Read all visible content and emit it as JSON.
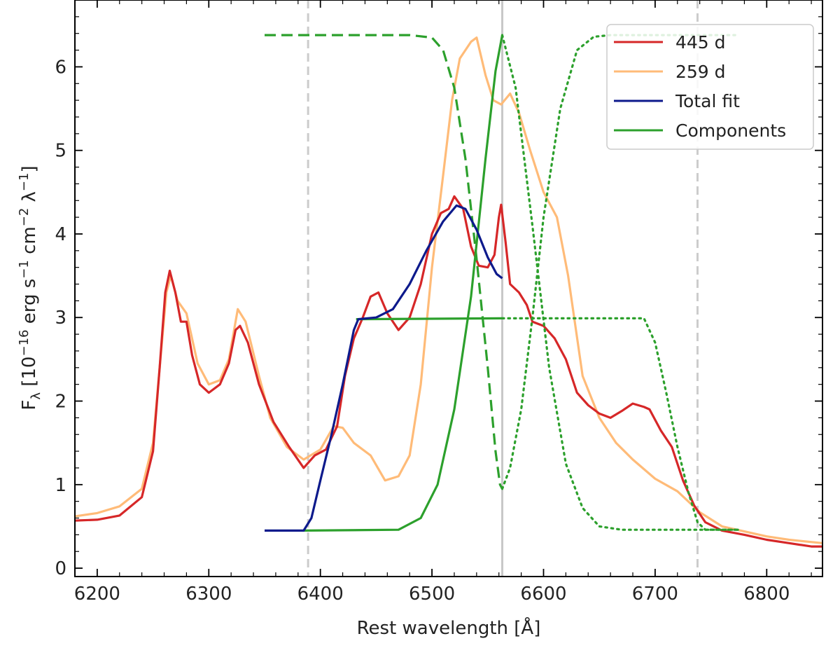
{
  "chart_data": {
    "type": "line",
    "title": "",
    "xlabel": "Rest wavelength [Å]",
    "ylabel_parts": {
      "f": "F",
      "f_sub": "λ",
      "open": " [10",
      "exp1": "−16",
      "erg": " erg s",
      "exp2": "−1",
      "cm": " cm",
      "exp3": "−2",
      "lam": " λ",
      "exp4": "−1",
      "close": "]"
    },
    "xlim": [
      6180,
      6850
    ],
    "ylim": [
      -0.1,
      6.8
    ],
    "xticks": [
      6200,
      6300,
      6400,
      6500,
      6600,
      6700,
      6800
    ],
    "yticks": [
      0,
      1,
      2,
      3,
      4,
      5,
      6
    ],
    "grid": false,
    "legend_position": "top-right",
    "legend": [
      {
        "label": "445 d",
        "color": "#d62728"
      },
      {
        "label": "259 d",
        "color": "#ffbb78"
      },
      {
        "label": "Total fit",
        "color": "#0d1a8c"
      },
      {
        "label": "Components",
        "color": "#2ca02c"
      }
    ],
    "vlines": [
      {
        "x": 6389,
        "style": "dashed",
        "color": "#cccccc"
      },
      {
        "x": 6563,
        "style": "solid",
        "color": "#c8c8c8"
      },
      {
        "x": 6738,
        "style": "dashed",
        "color": "#cccccc"
      }
    ],
    "series": [
      {
        "name": "259 d",
        "color": "#ffbb78",
        "dash": "solid",
        "points": [
          [
            6180,
            0.62
          ],
          [
            6200,
            0.66
          ],
          [
            6220,
            0.74
          ],
          [
            6240,
            0.95
          ],
          [
            6250,
            1.5
          ],
          [
            6256,
            2.4
          ],
          [
            6262,
            3.3
          ],
          [
            6266,
            3.5
          ],
          [
            6272,
            3.2
          ],
          [
            6280,
            3.05
          ],
          [
            6290,
            2.45
          ],
          [
            6300,
            2.2
          ],
          [
            6310,
            2.25
          ],
          [
            6318,
            2.5
          ],
          [
            6326,
            3.1
          ],
          [
            6333,
            2.95
          ],
          [
            6345,
            2.3
          ],
          [
            6355,
            1.8
          ],
          [
            6370,
            1.45
          ],
          [
            6385,
            1.3
          ],
          [
            6400,
            1.42
          ],
          [
            6412,
            1.7
          ],
          [
            6420,
            1.68
          ],
          [
            6430,
            1.5
          ],
          [
            6445,
            1.35
          ],
          [
            6458,
            1.05
          ],
          [
            6470,
            1.1
          ],
          [
            6480,
            1.35
          ],
          [
            6490,
            2.2
          ],
          [
            6500,
            3.6
          ],
          [
            6510,
            4.7
          ],
          [
            6518,
            5.6
          ],
          [
            6525,
            6.1
          ],
          [
            6535,
            6.3
          ],
          [
            6540,
            6.35
          ],
          [
            6548,
            5.9
          ],
          [
            6555,
            5.6
          ],
          [
            6562,
            5.55
          ],
          [
            6570,
            5.68
          ],
          [
            6578,
            5.45
          ],
          [
            6588,
            5.0
          ],
          [
            6600,
            4.5
          ],
          [
            6612,
            4.2
          ],
          [
            6622,
            3.5
          ],
          [
            6635,
            2.3
          ],
          [
            6650,
            1.8
          ],
          [
            6665,
            1.5
          ],
          [
            6680,
            1.3
          ],
          [
            6700,
            1.07
          ],
          [
            6720,
            0.92
          ],
          [
            6740,
            0.67
          ],
          [
            6760,
            0.5
          ],
          [
            6780,
            0.44
          ],
          [
            6800,
            0.38
          ],
          [
            6820,
            0.34
          ],
          [
            6850,
            0.3
          ]
        ]
      },
      {
        "name": "445 d",
        "color": "#d62728",
        "dash": "solid",
        "points": [
          [
            6180,
            0.57
          ],
          [
            6200,
            0.58
          ],
          [
            6220,
            0.63
          ],
          [
            6240,
            0.85
          ],
          [
            6250,
            1.4
          ],
          [
            6256,
            2.4
          ],
          [
            6261,
            3.3
          ],
          [
            6265,
            3.56
          ],
          [
            6270,
            3.3
          ],
          [
            6275,
            2.95
          ],
          [
            6280,
            2.95
          ],
          [
            6285,
            2.55
          ],
          [
            6292,
            2.2
          ],
          [
            6300,
            2.1
          ],
          [
            6310,
            2.2
          ],
          [
            6318,
            2.45
          ],
          [
            6324,
            2.85
          ],
          [
            6328,
            2.9
          ],
          [
            6335,
            2.7
          ],
          [
            6345,
            2.2
          ],
          [
            6358,
            1.75
          ],
          [
            6372,
            1.45
          ],
          [
            6385,
            1.2
          ],
          [
            6395,
            1.35
          ],
          [
            6405,
            1.42
          ],
          [
            6415,
            1.7
          ],
          [
            6422,
            2.3
          ],
          [
            6430,
            2.75
          ],
          [
            6438,
            3.0
          ],
          [
            6445,
            3.25
          ],
          [
            6452,
            3.3
          ],
          [
            6460,
            3.05
          ],
          [
            6470,
            2.85
          ],
          [
            6480,
            3.0
          ],
          [
            6490,
            3.4
          ],
          [
            6500,
            4.0
          ],
          [
            6508,
            4.25
          ],
          [
            6515,
            4.3
          ],
          [
            6520,
            4.45
          ],
          [
            6528,
            4.3
          ],
          [
            6535,
            3.85
          ],
          [
            6542,
            3.62
          ],
          [
            6550,
            3.6
          ],
          [
            6556,
            3.75
          ],
          [
            6560,
            4.2
          ],
          [
            6562,
            4.35
          ],
          [
            6566,
            3.9
          ],
          [
            6570,
            3.4
          ],
          [
            6578,
            3.3
          ],
          [
            6585,
            3.15
          ],
          [
            6590,
            2.95
          ],
          [
            6600,
            2.9
          ],
          [
            6610,
            2.75
          ],
          [
            6620,
            2.5
          ],
          [
            6630,
            2.1
          ],
          [
            6640,
            1.95
          ],
          [
            6650,
            1.85
          ],
          [
            6660,
            1.8
          ],
          [
            6670,
            1.88
          ],
          [
            6680,
            1.97
          ],
          [
            6690,
            1.93
          ],
          [
            6695,
            1.9
          ],
          [
            6705,
            1.65
          ],
          [
            6715,
            1.45
          ],
          [
            6725,
            1.05
          ],
          [
            6735,
            0.75
          ],
          [
            6745,
            0.55
          ],
          [
            6760,
            0.45
          ],
          [
            6780,
            0.4
          ],
          [
            6800,
            0.34
          ],
          [
            6820,
            0.3
          ],
          [
            6840,
            0.26
          ],
          [
            6850,
            0.26
          ]
        ]
      },
      {
        "name": "",
        "color": "#2ca02c",
        "dash": "long",
        "points": [
          [
            6350,
            6.38
          ],
          [
            6480,
            6.38
          ],
          [
            6500,
            6.35
          ],
          [
            6510,
            6.2
          ],
          [
            6520,
            5.75
          ],
          [
            6530,
            4.9
          ],
          [
            6540,
            3.7
          ],
          [
            6550,
            2.4
          ],
          [
            6557,
            1.4
          ],
          [
            6561,
            1.0
          ],
          [
            6563,
            0.95
          ]
        ]
      },
      {
        "name": "",
        "color": "#2ca02c",
        "dash": "solid",
        "points": [
          [
            6385,
            0.45
          ],
          [
            6470,
            0.46
          ],
          [
            6490,
            0.6
          ],
          [
            6505,
            1.0
          ],
          [
            6520,
            1.9
          ],
          [
            6535,
            3.25
          ],
          [
            6548,
            4.9
          ],
          [
            6557,
            5.95
          ],
          [
            6563,
            6.38
          ]
        ]
      },
      {
        "name": "",
        "color": "#2ca02c",
        "dash": "solid",
        "points": [
          [
            6432,
            2.98
          ],
          [
            6563,
            2.99
          ]
        ]
      },
      {
        "name": "",
        "color": "#2ca02c",
        "dash": "dotted",
        "points": [
          [
            6563,
            6.38
          ],
          [
            6575,
            5.75
          ],
          [
            6590,
            4.1
          ],
          [
            6605,
            2.4
          ],
          [
            6620,
            1.25
          ],
          [
            6635,
            0.72
          ],
          [
            6650,
            0.5
          ],
          [
            6670,
            0.46
          ],
          [
            6775,
            0.46
          ]
        ]
      },
      {
        "name": "",
        "color": "#2ca02c",
        "dash": "dotted",
        "points": [
          [
            6563,
            0.95
          ],
          [
            6570,
            1.2
          ],
          [
            6580,
            1.9
          ],
          [
            6590,
            3.0
          ],
          [
            6600,
            4.2
          ],
          [
            6615,
            5.5
          ],
          [
            6630,
            6.2
          ],
          [
            6645,
            6.36
          ],
          [
            6660,
            6.38
          ],
          [
            6775,
            6.38
          ]
        ]
      },
      {
        "name": "",
        "color": "#2ca02c",
        "dash": "dotted",
        "points": [
          [
            6563,
            2.99
          ],
          [
            6690,
            2.99
          ],
          [
            6700,
            2.7
          ],
          [
            6710,
            2.1
          ],
          [
            6720,
            1.45
          ],
          [
            6730,
            0.9
          ],
          [
            6738,
            0.55
          ],
          [
            6745,
            0.46
          ],
          [
            6775,
            0.46
          ]
        ]
      },
      {
        "name": "Total fit",
        "color": "#0d1a8c",
        "dash": "solid",
        "points": [
          [
            6350,
            0.45
          ],
          [
            6385,
            0.45
          ],
          [
            6392,
            0.6
          ],
          [
            6400,
            1.05
          ],
          [
            6410,
            1.6
          ],
          [
            6420,
            2.2
          ],
          [
            6430,
            2.85
          ],
          [
            6434,
            2.98
          ],
          [
            6450,
            3.0
          ],
          [
            6465,
            3.1
          ],
          [
            6480,
            3.4
          ],
          [
            6495,
            3.8
          ],
          [
            6510,
            4.15
          ],
          [
            6522,
            4.34
          ],
          [
            6530,
            4.3
          ],
          [
            6540,
            4.05
          ],
          [
            6550,
            3.72
          ],
          [
            6558,
            3.52
          ],
          [
            6563,
            3.47
          ]
        ]
      }
    ]
  }
}
